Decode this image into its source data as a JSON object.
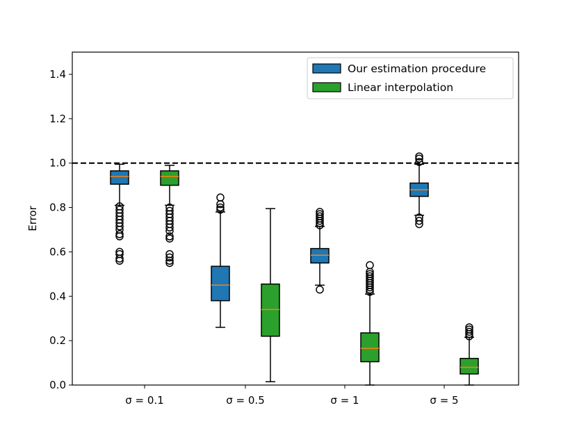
{
  "chart_data": {
    "type": "boxplot",
    "title": "",
    "xlabel": "",
    "ylabel": "Error",
    "ylim": [
      0,
      1.5
    ],
    "yticks": [
      "0.0",
      "0.2",
      "0.4",
      "0.6",
      "0.8",
      "1.0",
      "1.2",
      "1.4"
    ],
    "categories": [
      "σ = 0.1",
      "σ = 0.5",
      "σ = 1",
      "σ = 5"
    ],
    "reference_line": {
      "y": 1.0,
      "style": "dashed",
      "color": "#000000"
    },
    "legend": {
      "placement": "top-right"
    },
    "series": [
      {
        "name": "Our estimation procedure",
        "color": "#1f77b4",
        "boxes": [
          {
            "category": "σ = 0.1",
            "whisker_low": 0.81,
            "q1": 0.905,
            "median": 0.94,
            "q3": 0.965,
            "whisker_high": 0.995,
            "outliers": [
              0.805,
              0.79,
              0.775,
              0.76,
              0.745,
              0.73,
              0.715,
              0.7,
              0.68,
              0.67,
              0.6,
              0.59,
              0.57,
              0.56
            ]
          },
          {
            "category": "σ = 0.5",
            "whisker_low": 0.26,
            "q1": 0.38,
            "median": 0.45,
            "q3": 0.535,
            "whisker_high": 0.78,
            "outliers": [
              0.79,
              0.8,
              0.815,
              0.845
            ]
          },
          {
            "category": "σ = 1",
            "whisker_low": 0.45,
            "q1": 0.55,
            "median": 0.585,
            "q3": 0.615,
            "whisker_high": 0.715,
            "outliers": [
              0.72,
              0.73,
              0.74,
              0.75,
              0.76,
              0.77,
              0.78,
              0.43
            ]
          },
          {
            "category": "σ = 5",
            "whisker_low": 0.765,
            "q1": 0.85,
            "median": 0.88,
            "q3": 0.91,
            "whisker_high": 0.995,
            "outliers": [
              1.005,
              1.02,
              1.03,
              0.755,
              0.74,
              0.725
            ]
          }
        ]
      },
      {
        "name": "Linear interpolation",
        "color": "#2ca02c",
        "boxes": [
          {
            "category": "σ = 0.1",
            "whisker_low": 0.81,
            "q1": 0.9,
            "median": 0.94,
            "q3": 0.965,
            "whisker_high": 0.99,
            "outliers": [
              0.8,
              0.785,
              0.77,
              0.755,
              0.74,
              0.725,
              0.71,
              0.695,
              0.67,
              0.66,
              0.59,
              0.575,
              0.56,
              0.55
            ]
          },
          {
            "category": "σ = 0.5",
            "whisker_low": 0.015,
            "q1": 0.22,
            "median": 0.34,
            "q3": 0.455,
            "whisker_high": 0.795,
            "outliers": []
          },
          {
            "category": "σ = 1",
            "whisker_low": 0.0,
            "q1": 0.105,
            "median": 0.165,
            "q3": 0.235,
            "whisker_high": 0.41,
            "outliers": [
              0.42,
              0.43,
              0.44,
              0.45,
              0.46,
              0.47,
              0.48,
              0.49,
              0.5,
              0.51,
              0.54
            ]
          },
          {
            "category": "σ = 5",
            "whisker_low": 0.0,
            "q1": 0.05,
            "median": 0.08,
            "q3": 0.12,
            "whisker_high": 0.215,
            "outliers": [
              0.22,
              0.23,
              0.24,
              0.25,
              0.26
            ]
          }
        ]
      }
    ],
    "median_color": "#ff7f0e"
  }
}
